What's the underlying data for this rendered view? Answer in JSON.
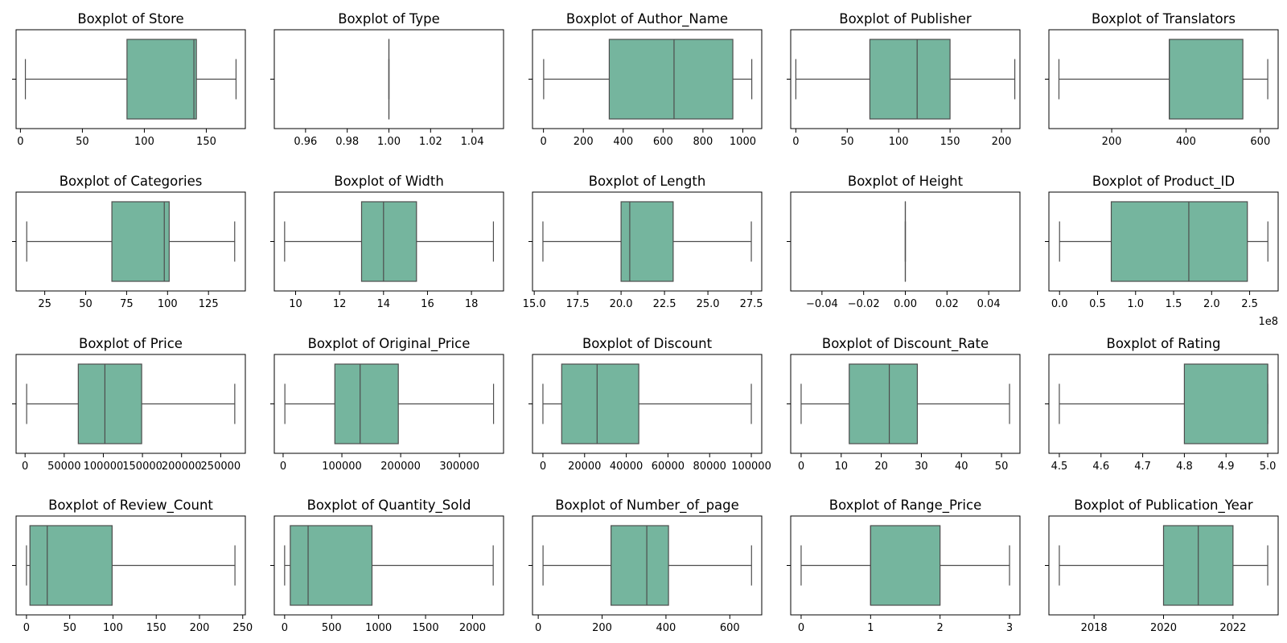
{
  "style": {
    "box_fill": "#75b59e",
    "line_color": "#4d4d4d",
    "frame_color": "#000000"
  },
  "chart_data": [
    {
      "type": "boxplot",
      "title": "Boxplot of Store",
      "xlim": [
        -3.5,
        181.5
      ],
      "ticks": [
        0,
        50,
        100,
        150
      ],
      "tick_labels": [
        "0",
        "50",
        "100",
        "150"
      ],
      "box": {
        "whislo": 4,
        "q1": 86,
        "med": 140,
        "q3": 142,
        "whishi": 174
      }
    },
    {
      "type": "boxplot",
      "title": "Boxplot of Type",
      "xlim": [
        0.945,
        1.055
      ],
      "ticks": [
        0.96,
        0.98,
        1.0,
        1.02,
        1.04
      ],
      "tick_labels": [
        "0.96",
        "0.98",
        "1.00",
        "1.02",
        "1.04"
      ],
      "box": {
        "whislo": 1,
        "q1": 1,
        "med": 1,
        "q3": 1,
        "whishi": 1
      }
    },
    {
      "type": "boxplot",
      "title": "Boxplot of Author_Name",
      "xlim": [
        -55,
        1095
      ],
      "ticks": [
        0,
        200,
        400,
        600,
        800,
        1000
      ],
      "tick_labels": [
        "0",
        "200",
        "400",
        "600",
        "800",
        "1000"
      ],
      "box": {
        "whislo": 1,
        "q1": 330,
        "med": 655,
        "q3": 950,
        "whishi": 1045
      }
    },
    {
      "type": "boxplot",
      "title": "Boxplot of Publisher",
      "xlim": [
        -5,
        218
      ],
      "ticks": [
        0,
        50,
        100,
        150,
        200
      ],
      "tick_labels": [
        "0",
        "50",
        "100",
        "150",
        "200"
      ],
      "box": {
        "whislo": 0,
        "q1": 72,
        "med": 118,
        "q3": 150,
        "whishi": 213
      }
    },
    {
      "type": "boxplot",
      "title": "Boxplot of Translators",
      "xlim": [
        31,
        648
      ],
      "ticks": [
        200,
        400,
        600
      ],
      "tick_labels": [
        "200",
        "400",
        "600"
      ],
      "box": {
        "whislo": 58,
        "q1": 355,
        "med": 355,
        "q3": 553,
        "whishi": 620
      }
    },
    {
      "type": "boxplot",
      "title": "Boxplot of Categories",
      "xlim": [
        7.5,
        147.5
      ],
      "ticks": [
        25,
        50,
        75,
        100,
        125
      ],
      "tick_labels": [
        "25",
        "50",
        "75",
        "100",
        "125"
      ],
      "box": {
        "whislo": 14,
        "q1": 66,
        "med": 98,
        "q3": 101,
        "whishi": 141
      }
    },
    {
      "type": "boxplot",
      "title": "Boxplot of Width",
      "xlim": [
        9.03,
        19.46
      ],
      "ticks": [
        10,
        12,
        14,
        16,
        18
      ],
      "tick_labels": [
        "10",
        "12",
        "14",
        "16",
        "18"
      ],
      "box": {
        "whislo": 9.5,
        "q1": 13,
        "med": 14,
        "q3": 15.5,
        "whishi": 19
      }
    },
    {
      "type": "boxplot",
      "title": "Boxplot of Length",
      "xlim": [
        14.9,
        28.1
      ],
      "ticks": [
        15.0,
        17.5,
        20.0,
        22.5,
        25.0,
        27.5
      ],
      "tick_labels": [
        "15.0",
        "17.5",
        "20.0",
        "22.5",
        "25.0",
        "27.5"
      ],
      "box": {
        "whislo": 15.5,
        "q1": 20,
        "med": 20.5,
        "q3": 23,
        "whishi": 27.5
      }
    },
    {
      "type": "boxplot",
      "title": "Boxplot of Height",
      "xlim": [
        -0.055,
        0.055
      ],
      "ticks": [
        -0.04,
        -0.02,
        0.0,
        0.02,
        0.04
      ],
      "tick_labels": [
        "−0.04",
        "−0.02",
        "0.00",
        "0.02",
        "0.04"
      ],
      "box": {
        "whislo": 0,
        "q1": 0,
        "med": 0,
        "q3": 0,
        "whishi": 0
      }
    },
    {
      "type": "boxplot",
      "title": "Boxplot of Product_ID",
      "xlim": [
        -0.14,
        2.875
      ],
      "ticks": [
        0.0,
        0.5,
        1.0,
        1.5,
        2.0,
        2.5
      ],
      "tick_labels": [
        "0.0",
        "0.5",
        "1.0",
        "1.5",
        "2.0",
        "2.5"
      ],
      "offset_text": "1e8",
      "box": {
        "whislo": 0,
        "q1": 0.68,
        "med": 1.7,
        "q3": 2.47,
        "whishi": 2.74
      }
    },
    {
      "type": "boxplot",
      "title": "Boxplot of Price",
      "xlim": [
        -11500,
        281500
      ],
      "ticks": [
        0,
        50000,
        100000,
        150000,
        200000,
        250000
      ],
      "tick_labels": [
        "0",
        "50000",
        "100000",
        "150000",
        "200000",
        "250000"
      ],
      "box": {
        "whislo": 2000,
        "q1": 68000,
        "med": 102000,
        "q3": 149000,
        "whishi": 268000
      }
    },
    {
      "type": "boxplot",
      "title": "Boxplot of Original_Price",
      "xlim": [
        -15000,
        375000
      ],
      "ticks": [
        0,
        100000,
        200000,
        300000
      ],
      "tick_labels": [
        "0",
        "100000",
        "200000",
        "300000"
      ],
      "box": {
        "whislo": 3000,
        "q1": 88000,
        "med": 131000,
        "q3": 196000,
        "whishi": 358000
      }
    },
    {
      "type": "boxplot",
      "title": "Boxplot of Discount",
      "xlim": [
        -5000,
        105000
      ],
      "ticks": [
        0,
        20000,
        40000,
        60000,
        80000,
        100000
      ],
      "tick_labels": [
        "0",
        "20000",
        "40000",
        "60000",
        "80000",
        "100000"
      ],
      "box": {
        "whislo": 0,
        "q1": 9000,
        "med": 26000,
        "q3": 46000,
        "whishi": 100000
      }
    },
    {
      "type": "boxplot",
      "title": "Boxplot of Discount_Rate",
      "xlim": [
        -2.6,
        54.6
      ],
      "ticks": [
        0,
        10,
        20,
        30,
        40,
        50
      ],
      "tick_labels": [
        "0",
        "10",
        "20",
        "30",
        "40",
        "50"
      ],
      "box": {
        "whislo": 0,
        "q1": 12,
        "med": 22,
        "q3": 29,
        "whishi": 52
      }
    },
    {
      "type": "boxplot",
      "title": "Boxplot of Rating",
      "xlim": [
        4.475,
        5.025
      ],
      "ticks": [
        4.5,
        4.6,
        4.7,
        4.8,
        4.9,
        5.0
      ],
      "tick_labels": [
        "4.5",
        "4.6",
        "4.7",
        "4.8",
        "4.9",
        "5.0"
      ],
      "box": {
        "whislo": 4.5,
        "q1": 4.8,
        "med": 5.0,
        "q3": 5.0,
        "whishi": 5.0
      }
    },
    {
      "type": "boxplot",
      "title": "Boxplot of Review_Count",
      "xlim": [
        -12,
        253
      ],
      "ticks": [
        0,
        50,
        100,
        150,
        200,
        250
      ],
      "tick_labels": [
        "0",
        "50",
        "100",
        "150",
        "200",
        "250"
      ],
      "box": {
        "whislo": 0,
        "q1": 4,
        "med": 24,
        "q3": 99,
        "whishi": 241
      }
    },
    {
      "type": "boxplot",
      "title": "Boxplot of Quantity_Sold",
      "xlim": [
        -110,
        2330
      ],
      "ticks": [
        0,
        500,
        1000,
        1500,
        2000
      ],
      "tick_labels": [
        "0",
        "500",
        "1000",
        "1500",
        "2000"
      ],
      "box": {
        "whislo": 0,
        "q1": 60,
        "med": 250,
        "q3": 930,
        "whishi": 2220
      }
    },
    {
      "type": "boxplot",
      "title": "Boxplot of Number_of_page",
      "xlim": [
        -18,
        700
      ],
      "ticks": [
        0,
        200,
        400,
        600
      ],
      "tick_labels": [
        "0",
        "200",
        "400",
        "600"
      ],
      "box": {
        "whislo": 15,
        "q1": 228,
        "med": 340,
        "q3": 408,
        "whishi": 668
      }
    },
    {
      "type": "boxplot",
      "title": "Boxplot of Range_Price",
      "xlim": [
        -0.15,
        3.15
      ],
      "ticks": [
        0,
        1,
        2,
        3
      ],
      "tick_labels": [
        "0",
        "1",
        "2",
        "3"
      ],
      "box": {
        "whislo": 0,
        "q1": 1,
        "med": 1,
        "q3": 2,
        "whishi": 3
      }
    },
    {
      "type": "boxplot",
      "title": "Boxplot of Publication_Year",
      "xlim": [
        2016.7,
        2023.3
      ],
      "ticks": [
        2018,
        2020,
        2022
      ],
      "tick_labels": [
        "2018",
        "2020",
        "2022"
      ],
      "box": {
        "whislo": 2017,
        "q1": 2020,
        "med": 2021,
        "q3": 2022,
        "whishi": 2023
      }
    }
  ]
}
